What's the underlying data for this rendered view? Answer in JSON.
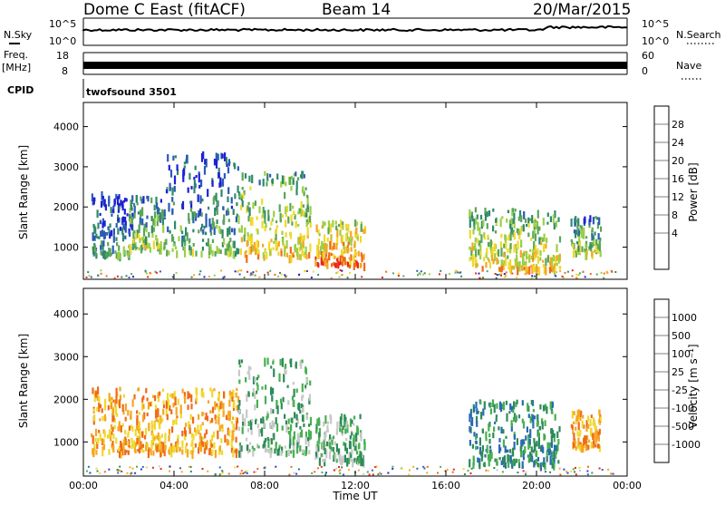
{
  "header": {
    "title_left": "Dome C East (fitACF)",
    "title_center": "Beam 14",
    "title_right": "20/Mar/2015"
  },
  "top_panels": {
    "nsky_label": "N.Sky",
    "nsky_ticks": [
      "10^5",
      "10^0"
    ],
    "nsearch_label": "N.Search",
    "nsearch_ticks": [
      "10^5",
      "10^0"
    ],
    "freq_label": "Freq.",
    "freq_unit": "[MHz]",
    "freq_ticks": [
      "18",
      "8"
    ],
    "nave_label": "Nave",
    "nave_ticks": [
      "60",
      "0"
    ],
    "cpid_label": "CPID",
    "cpid_value": "twofsound 3501"
  },
  "chart_data": [
    {
      "type": "heatmap",
      "panel": "power",
      "ylabel": "Slant Range [km]",
      "xlabel": "",
      "yticks": [
        1000,
        2000,
        3000,
        4000
      ],
      "ylim": [
        200,
        4600
      ],
      "xlim_hours": [
        0,
        24
      ],
      "colorbar": {
        "label": "Power [dB]",
        "ticks": [
          "4",
          "8",
          "12",
          "16",
          "20",
          "24",
          "28"
        ],
        "colors": [
          "#1f1fd6",
          "#2a5bb5",
          "#2f8a6a",
          "#5aa55a",
          "#9bd045",
          "#f0d92c",
          "#f5a623",
          "#ef6a1a",
          "#e8241c"
        ]
      },
      "blobs": [
        {
          "t": [
            0.3,
            2.2
          ],
          "r": [
            850,
            2400
          ],
          "p": 12
        },
        {
          "t": [
            2.0,
            3.6
          ],
          "r": [
            1000,
            2300
          ],
          "p": 18
        },
        {
          "t": [
            3.6,
            6.8
          ],
          "r": [
            900,
            3400
          ],
          "p": 14
        },
        {
          "t": [
            6.8,
            10.0
          ],
          "r": [
            800,
            2900
          ],
          "p": 22
        },
        {
          "t": [
            10.2,
            12.4
          ],
          "r": [
            600,
            1700
          ],
          "p": 27
        },
        {
          "t": [
            17.0,
            21.0
          ],
          "r": [
            500,
            2000
          ],
          "p": 22
        },
        {
          "t": [
            21.5,
            22.8
          ],
          "r": [
            900,
            1800
          ],
          "p": 18
        }
      ]
    },
    {
      "type": "heatmap",
      "panel": "velocity",
      "ylabel": "Slant Range [km]",
      "xlabel": "Time UT",
      "xticks": [
        "00:00",
        "04:00",
        "08:00",
        "12:00",
        "16:00",
        "20:00",
        "00:00"
      ],
      "yticks": [
        1000,
        2000,
        3000,
        4000
      ],
      "ylim": [
        200,
        4600
      ],
      "xlim_hours": [
        0,
        24
      ],
      "colorbar": {
        "label": "Velocity [m s⁻¹]",
        "ticks": [
          "1000",
          "500",
          "100",
          "25",
          "-25",
          "-100",
          "-500",
          "-1000"
        ],
        "colors": [
          "#1f3fd6",
          "#2a6ab5",
          "#2f8a5a",
          "#46b050",
          "#c8c8c8",
          "#f0d92c",
          "#f5a623",
          "#ef6a1a",
          "#e8241c"
        ]
      },
      "blobs": [
        {
          "t": [
            0.3,
            6.8
          ],
          "r": [
            800,
            2300
          ],
          "v": -180
        },
        {
          "t": [
            6.8,
            10.0
          ],
          "r": [
            800,
            3000
          ],
          "v": 40
        },
        {
          "t": [
            10.2,
            12.4
          ],
          "r": [
            600,
            1700
          ],
          "v": 80
        },
        {
          "t": [
            17.0,
            21.0
          ],
          "r": [
            500,
            2000
          ],
          "v": 250
        },
        {
          "t": [
            21.5,
            22.8
          ],
          "r": [
            900,
            1800
          ],
          "v": -120
        }
      ]
    }
  ],
  "colors": {
    "axis": "#000000",
    "background": "#ffffff"
  }
}
